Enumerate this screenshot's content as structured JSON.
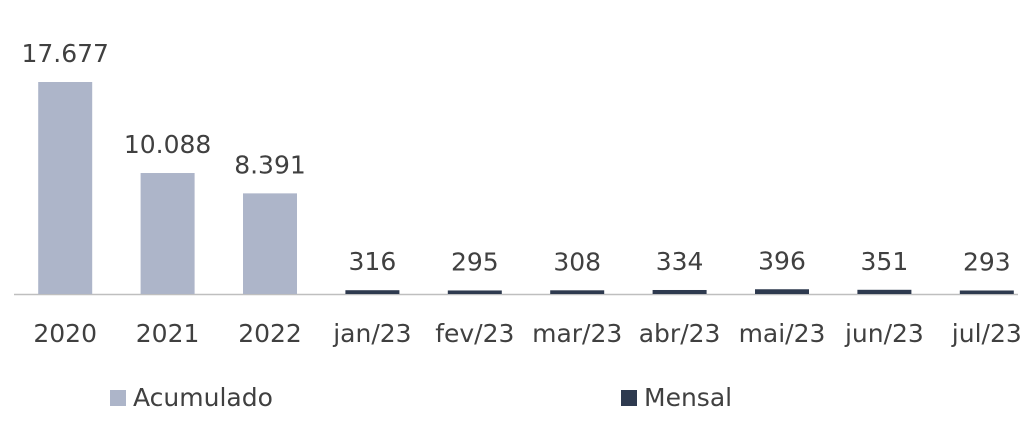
{
  "chart_data": {
    "type": "bar",
    "categories": [
      "2020",
      "2021",
      "2022",
      "jan/23",
      "fev/23",
      "mar/23",
      "abr/23",
      "mai/23",
      "jun/23",
      "jul/23"
    ],
    "series": [
      {
        "name": "Acumulado",
        "color": "#adb5c9",
        "values": [
          17677,
          10088,
          8391,
          null,
          null,
          null,
          null,
          null,
          null,
          null
        ],
        "value_labels": [
          "17.677",
          "10.088",
          "8.391",
          null,
          null,
          null,
          null,
          null,
          null,
          null
        ]
      },
      {
        "name": "Mensal",
        "color": "#2e3a4f",
        "values": [
          null,
          null,
          null,
          316,
          295,
          308,
          334,
          396,
          351,
          293
        ],
        "value_labels": [
          null,
          null,
          null,
          "316",
          "295",
          "308",
          "334",
          "396",
          "351",
          "293"
        ]
      }
    ]
  }
}
